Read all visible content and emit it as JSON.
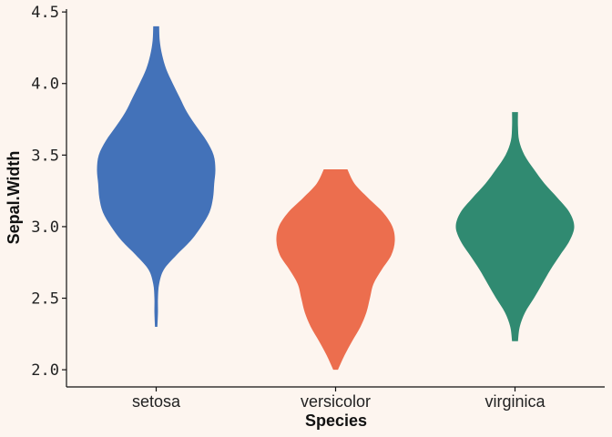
{
  "chart_data": {
    "type": "violin",
    "xlabel": "Species",
    "ylabel": "Sepal.Width",
    "ylim": [
      1.88,
      4.52
    ],
    "yticks": [
      "2.0",
      "2.5",
      "3.0",
      "3.5",
      "4.0",
      "4.5"
    ],
    "grid": false,
    "legend": "none",
    "categories": [
      "setosa",
      "versicolor",
      "virginica"
    ],
    "colors": [
      "#4372B9",
      "#EC6E4E",
      "#308A71"
    ],
    "series": [
      {
        "category": "setosa",
        "min": 2.3,
        "max": 4.4,
        "profile": [
          [
            2.3,
            0.02
          ],
          [
            2.4,
            0.03
          ],
          [
            2.5,
            0.03
          ],
          [
            2.6,
            0.05
          ],
          [
            2.7,
            0.13
          ],
          [
            2.8,
            0.34
          ],
          [
            2.9,
            0.58
          ],
          [
            3.0,
            0.76
          ],
          [
            3.1,
            0.9
          ],
          [
            3.2,
            0.96
          ],
          [
            3.3,
            0.98
          ],
          [
            3.4,
            1.0
          ],
          [
            3.5,
            0.97
          ],
          [
            3.6,
            0.85
          ],
          [
            3.7,
            0.68
          ],
          [
            3.8,
            0.52
          ],
          [
            3.9,
            0.4
          ],
          [
            4.0,
            0.28
          ],
          [
            4.1,
            0.17
          ],
          [
            4.2,
            0.1
          ],
          [
            4.3,
            0.06
          ],
          [
            4.4,
            0.05
          ]
        ]
      },
      {
        "category": "versicolor",
        "min": 2.0,
        "max": 3.4,
        "profile": [
          [
            2.0,
            0.04
          ],
          [
            2.1,
            0.15
          ],
          [
            2.2,
            0.28
          ],
          [
            2.3,
            0.42
          ],
          [
            2.4,
            0.52
          ],
          [
            2.5,
            0.58
          ],
          [
            2.6,
            0.64
          ],
          [
            2.7,
            0.78
          ],
          [
            2.8,
            0.94
          ],
          [
            2.9,
            1.0
          ],
          [
            3.0,
            0.96
          ],
          [
            3.1,
            0.8
          ],
          [
            3.2,
            0.55
          ],
          [
            3.3,
            0.32
          ],
          [
            3.4,
            0.2
          ]
        ]
      },
      {
        "category": "virginica",
        "min": 2.2,
        "max": 3.8,
        "profile": [
          [
            2.2,
            0.05
          ],
          [
            2.3,
            0.08
          ],
          [
            2.4,
            0.17
          ],
          [
            2.5,
            0.32
          ],
          [
            2.6,
            0.46
          ],
          [
            2.7,
            0.6
          ],
          [
            2.8,
            0.76
          ],
          [
            2.9,
            0.92
          ],
          [
            3.0,
            1.0
          ],
          [
            3.1,
            0.92
          ],
          [
            3.2,
            0.72
          ],
          [
            3.3,
            0.5
          ],
          [
            3.4,
            0.32
          ],
          [
            3.5,
            0.16
          ],
          [
            3.6,
            0.07
          ],
          [
            3.7,
            0.05
          ],
          [
            3.8,
            0.05
          ]
        ]
      }
    ]
  }
}
